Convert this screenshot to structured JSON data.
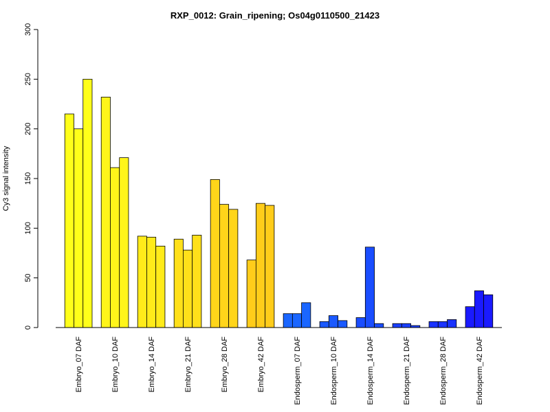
{
  "chart_data": {
    "type": "bar",
    "title": "RXP_0012: Grain_ripening; Os04g0110500_21423",
    "xlabel": "",
    "ylabel": "Cy3 signal intensity",
    "ylim": [
      0,
      300
    ],
    "yticks": [
      0,
      50,
      100,
      150,
      200,
      250,
      300
    ],
    "grid": false,
    "categories": [
      "Embryo_07 DAF",
      "Embryo_10 DAF",
      "Embryo_14 DAF",
      "Embryo_21 DAF",
      "Embryo_28 DAF",
      "Embryo_42 DAF",
      "Endosperm_07 DAF",
      "Endosperm_10 DAF",
      "Endosperm_14 DAF",
      "Endosperm_21 DAF",
      "Endosperm_28 DAF",
      "Endosperm_42 DAF"
    ],
    "group_colors": [
      "#ffff1a",
      "#fff51a",
      "#ffeb1a",
      "#ffe01a",
      "#ffd51a",
      "#ffcc1a",
      "#1a66ff",
      "#1a59ff",
      "#1a4dff",
      "#1a40ff",
      "#1a33ff",
      "#1a1aff"
    ],
    "values": [
      [
        215,
        200,
        250
      ],
      [
        232,
        161,
        171
      ],
      [
        92,
        91,
        82
      ],
      [
        89,
        78,
        93
      ],
      [
        149,
        124,
        119
      ],
      [
        68,
        125,
        123
      ],
      [
        14,
        14,
        25
      ],
      [
        6,
        12,
        7
      ],
      [
        10,
        81,
        4
      ],
      [
        4,
        4,
        2
      ],
      [
        6,
        6,
        8
      ],
      [
        21,
        37,
        33
      ]
    ]
  }
}
